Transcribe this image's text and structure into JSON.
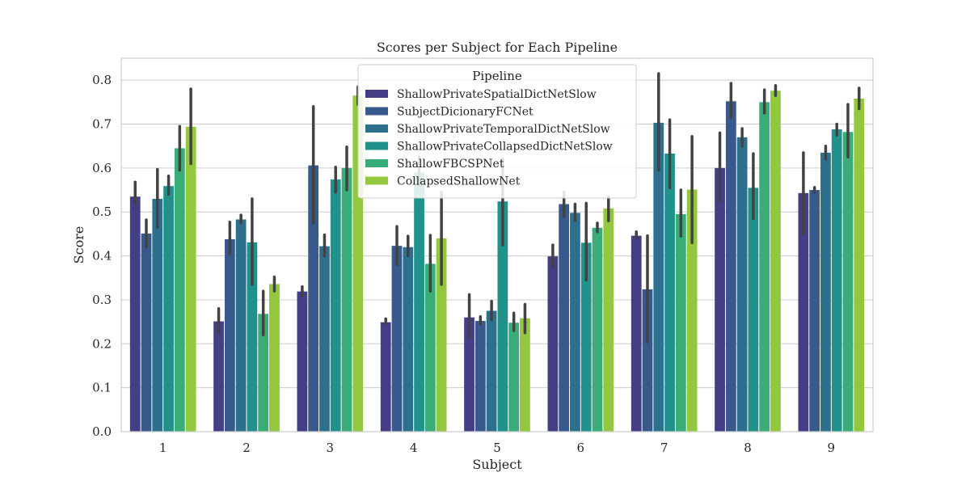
{
  "chart_data": {
    "type": "bar",
    "title": "Scores per Subject for Each Pipeline",
    "xlabel": "Subject",
    "ylabel": "Score",
    "ylim": [
      0,
      0.85
    ],
    "yticks": [
      0.0,
      0.1,
      0.2,
      0.3,
      0.4,
      0.5,
      0.6,
      0.7,
      0.8
    ],
    "ytick_labels": [
      "0.0",
      "0.1",
      "0.2",
      "0.3",
      "0.4",
      "0.5",
      "0.6",
      "0.7",
      "0.8"
    ],
    "grid": true,
    "categories": [
      "1",
      "2",
      "3",
      "4",
      "5",
      "6",
      "7",
      "8",
      "9"
    ],
    "legend": {
      "title": "Pipeline",
      "placement": "top-center"
    },
    "series": [
      {
        "name": "ShallowPrivateSpatialDictNetSlow",
        "color": "#433e85",
        "values": [
          0.535,
          0.251,
          0.319,
          0.249,
          0.26,
          0.399,
          0.446,
          0.6,
          0.543
        ],
        "err_low": [
          0.52,
          0.225,
          0.31,
          0.245,
          0.215,
          0.375,
          0.44,
          0.525,
          0.45
        ],
        "err_high": [
          0.568,
          0.28,
          0.33,
          0.257,
          0.312,
          0.425,
          0.455,
          0.68,
          0.635
        ]
      },
      {
        "name": "SubjectDicionaryFCNet",
        "color": "#38598c",
        "values": [
          0.451,
          0.438,
          0.606,
          0.423,
          0.252,
          0.518,
          0.324,
          0.752,
          0.55
        ],
        "err_low": [
          0.42,
          0.405,
          0.475,
          0.38,
          0.245,
          0.49,
          0.205,
          0.715,
          0.545
        ],
        "err_high": [
          0.482,
          0.477,
          0.74,
          0.467,
          0.262,
          0.545,
          0.446,
          0.793,
          0.556
        ]
      },
      {
        "name": "ShallowPrivateTemporalDictNetSlow",
        "color": "#2d708e",
        "values": [
          0.53,
          0.483,
          0.422,
          0.42,
          0.275,
          0.498,
          0.703,
          0.67,
          0.635
        ],
        "err_low": [
          0.465,
          0.475,
          0.4,
          0.4,
          0.255,
          0.48,
          0.595,
          0.65,
          0.62
        ],
        "err_high": [
          0.597,
          0.493,
          0.448,
          0.445,
          0.297,
          0.518,
          0.815,
          0.69,
          0.65
        ]
      },
      {
        "name": "ShallowPrivateCollapsedDictNetSlow",
        "color": "#21918c",
        "values": [
          0.559,
          0.431,
          0.574,
          0.59,
          0.524,
          0.43,
          0.633,
          0.555,
          0.688
        ],
        "err_low": [
          0.54,
          0.335,
          0.545,
          0.56,
          0.425,
          0.345,
          0.555,
          0.485,
          0.675
        ],
        "err_high": [
          0.582,
          0.53,
          0.602,
          0.625,
          0.62,
          0.52,
          0.71,
          0.633,
          0.7
        ]
      },
      {
        "name": "ShallowFBCSPNet",
        "color": "#3aac77",
        "values": [
          0.645,
          0.268,
          0.6,
          0.382,
          0.248,
          0.464,
          0.495,
          0.75,
          0.682
        ],
        "err_low": [
          0.595,
          0.22,
          0.55,
          0.32,
          0.23,
          0.455,
          0.445,
          0.725,
          0.625
        ],
        "err_high": [
          0.695,
          0.32,
          0.648,
          0.447,
          0.27,
          0.475,
          0.55,
          0.778,
          0.745
        ]
      },
      {
        "name": "CollapsedShallowNet",
        "color": "#93c83e",
        "values": [
          0.694,
          0.336,
          0.765,
          0.44,
          0.258,
          0.508,
          0.551,
          0.776,
          0.758
        ],
        "err_low": [
          0.61,
          0.32,
          0.745,
          0.335,
          0.225,
          0.48,
          0.43,
          0.765,
          0.735
        ],
        "err_high": [
          0.78,
          0.352,
          0.785,
          0.545,
          0.29,
          0.535,
          0.672,
          0.788,
          0.782
        ]
      }
    ]
  }
}
